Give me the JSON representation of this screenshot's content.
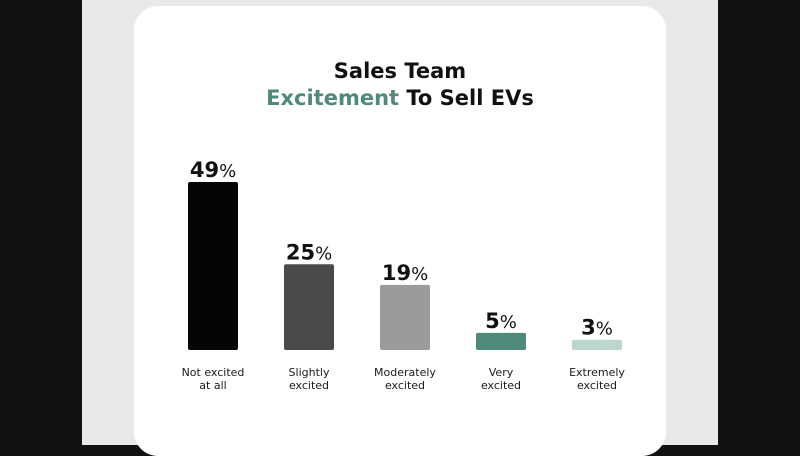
{
  "title": {
    "line1": "Sales Team",
    "line2_accent": "Excitement",
    "line2_rest": " To Sell EVs"
  },
  "colors": {
    "accent": "#4f8a78"
  },
  "chart_data": {
    "type": "bar",
    "title": "Sales Team Excitement To Sell EVs",
    "categories": [
      [
        "Not excited",
        "at all"
      ],
      [
        "Slightly",
        "excited"
      ],
      [
        "Moderately",
        "excited"
      ],
      [
        "Very",
        "excited"
      ],
      [
        "Extremely",
        "excited"
      ]
    ],
    "values": [
      49,
      25,
      19,
      5,
      3
    ],
    "value_suffix": "%",
    "colors": [
      "#050505",
      "#4a4a4a",
      "#9b9b9b",
      "#4f8a78",
      "#b9d7cd"
    ],
    "ylim": [
      0,
      49
    ],
    "grid": false,
    "legend": "none"
  }
}
